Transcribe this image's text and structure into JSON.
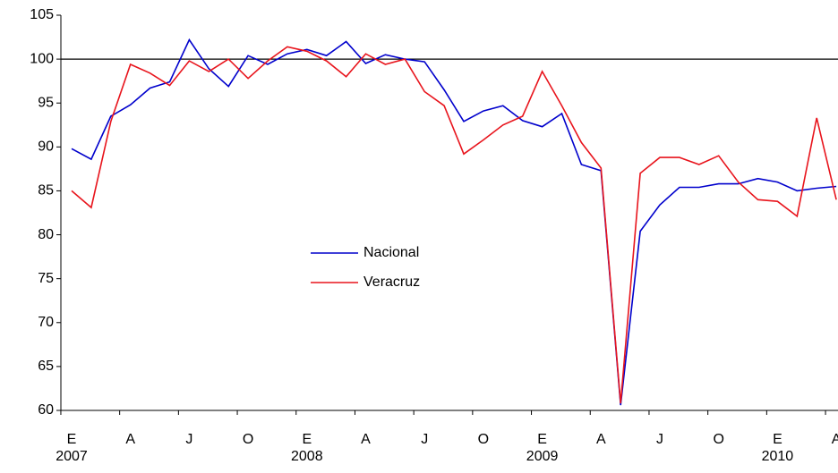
{
  "chart_data": {
    "type": "line",
    "categories": [
      [
        "E",
        "2007"
      ],
      null,
      null,
      [
        "A"
      ],
      null,
      null,
      [
        "J"
      ],
      null,
      null,
      [
        "O"
      ],
      null,
      null,
      [
        "E",
        "2008"
      ],
      null,
      null,
      [
        "A"
      ],
      null,
      null,
      [
        "J"
      ],
      null,
      null,
      [
        "O"
      ],
      null,
      null,
      [
        "E",
        "2009"
      ],
      null,
      null,
      [
        "A"
      ],
      null,
      null,
      [
        "J"
      ],
      null,
      null,
      [
        "O"
      ],
      null,
      null,
      [
        "E",
        "2010"
      ],
      null,
      null,
      [
        "A"
      ]
    ],
    "series": [
      {
        "name": "Nacional",
        "color": "#0000cc",
        "values": [
          89.8,
          88.6,
          93.5,
          94.8,
          96.7,
          97.4,
          102.2,
          98.9,
          96.9,
          100.4,
          99.4,
          100.6,
          101.1,
          100.4,
          102.0,
          99.5,
          100.5,
          100.0,
          99.7,
          96.5,
          92.9,
          94.1,
          94.7,
          93.0,
          92.3,
          93.8,
          88.0,
          87.3,
          60.6,
          80.4,
          83.4,
          85.4,
          85.4,
          85.8,
          85.8,
          86.4,
          86.0,
          85.0,
          85.3,
          85.5
        ]
      },
      {
        "name": "Veracruz",
        "color": "#e8141c",
        "values": [
          85.0,
          83.1,
          92.9,
          99.4,
          98.4,
          97.0,
          99.8,
          98.6,
          100.0,
          97.8,
          99.8,
          101.4,
          100.9,
          99.8,
          98.0,
          100.6,
          99.4,
          100.0,
          96.3,
          94.7,
          89.2,
          90.8,
          92.5,
          93.5,
          98.6,
          94.7,
          90.5,
          87.6,
          60.8,
          87.0,
          88.8,
          88.8,
          88.0,
          89.0,
          86.0,
          84.0,
          83.8,
          82.1,
          93.3,
          84.0
        ]
      }
    ],
    "hline": 100,
    "ylim": [
      60,
      105
    ],
    "yticks": [
      60,
      65,
      70,
      75,
      80,
      85,
      90,
      95,
      100,
      105
    ]
  }
}
